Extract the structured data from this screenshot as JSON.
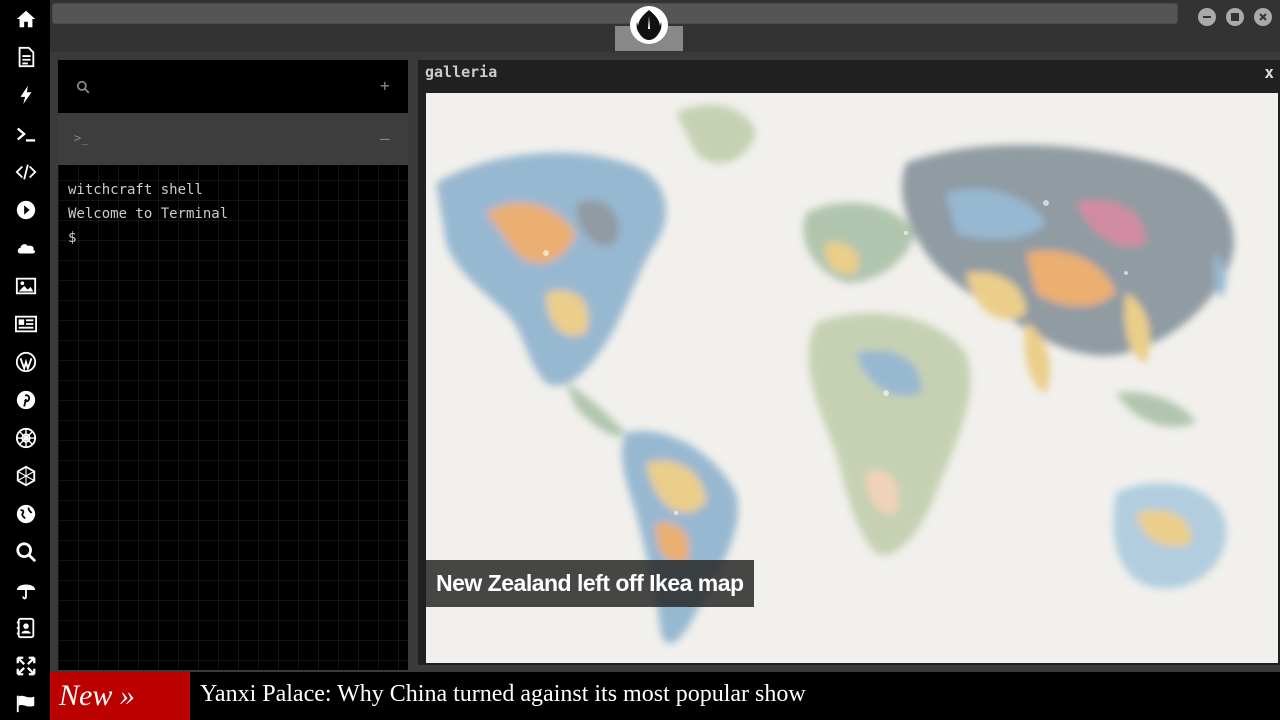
{
  "sidebar": {
    "icons": [
      "home-icon",
      "document-icon",
      "bolt-icon",
      "terminal-icon",
      "code-icon",
      "play-icon",
      "cloud-icon",
      "image-icon",
      "news-icon",
      "wordpress-icon",
      "pinterest-icon",
      "empire-icon",
      "hexagon-icon",
      "globe-icon",
      "search-icon",
      "umbrella-icon",
      "contacts-icon",
      "expand-icon",
      "flag-icon"
    ]
  },
  "topbar": {
    "logo": "rebel-alliance-icon"
  },
  "terminal": {
    "search_glyph": "search-icon",
    "add_label": "+",
    "prompt_tab_label": ">_",
    "minimize_label": "–",
    "lines": [
      "witchcraft shell",
      "Welcome to Terminal",
      "$"
    ]
  },
  "gallery": {
    "title": "galleria",
    "close_label": "x",
    "caption": "New Zealand left off Ikea map"
  },
  "ticker": {
    "label": "New »",
    "headline": "Yanxi Palace: Why China turned against its most popular show"
  },
  "colors": {
    "ticker_label_bg": "#bb0000",
    "terminal_bg": "#000000",
    "chrome_bg": "#333333"
  }
}
